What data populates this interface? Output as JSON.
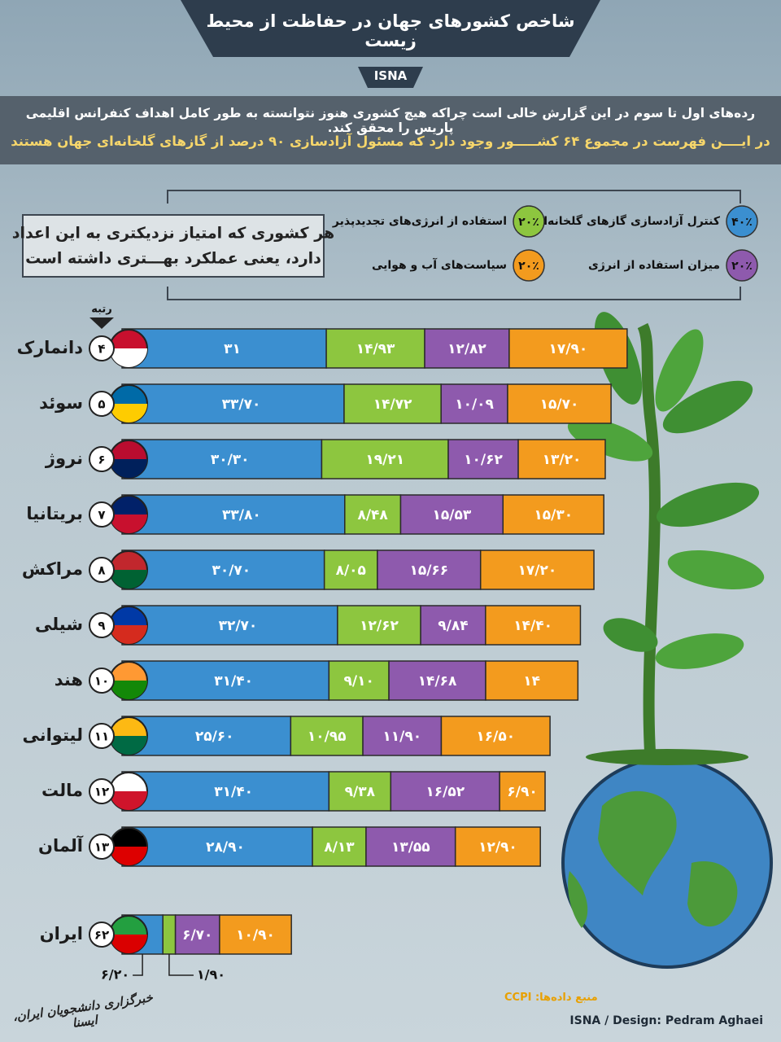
{
  "chart_data": {
    "type": "bar",
    "orientation": "horizontal",
    "stacked": true,
    "title": "شاخص کشورهای جهان در حفاظت از محیط زیست",
    "brand": "ISNA",
    "intro": [
      "رده‌های اول تا سوم در این گزارش خالی است چراکه هیچ کشوری هنوز نتوانسته به طور کامل اهداف کنفرانس اقلیمی پاریس را محقق کند.",
      "در ایــــن فهرست در مجموع ۶۴ کشـــــور وجود دارد که مسئول آزادسازی ۹۰ درصد از گازهای گلخانه‌ای جهان هستند"
    ],
    "note": [
      "هر کشوری که امتیاز نزدیکتری به این اعداد",
      "دارد، یعنی عملکرد بهـــتری داشته است"
    ],
    "rank_label": "رتبه",
    "categories": [
      "دانمارک",
      "سوئد",
      "نروژ",
      "بریتانیا",
      "مراکش",
      "شیلی",
      "هند",
      "لیتوانی",
      "مالت",
      "آلمان",
      "ایران"
    ],
    "ranks": [
      "۴",
      "۵",
      "۶",
      "۷",
      "۸",
      "۹",
      "۱۰",
      "۱۱",
      "۱۲",
      "۱۳",
      "۶۲"
    ],
    "series": [
      {
        "name": "کنترل آزادسازی گازهای گلخانه‌ای",
        "weight": 40,
        "weight_label": "۴۰٪",
        "color": "#3b8fd0",
        "values": [
          31,
          33.7,
          30.3,
          33.8,
          30.7,
          32.7,
          31.4,
          25.6,
          31.4,
          28.9,
          6.2
        ],
        "value_labels": [
          "۳۱",
          "۳۳/۷۰",
          "۳۰/۳۰",
          "۳۳/۸۰",
          "۳۰/۷۰",
          "۳۲/۷۰",
          "۳۱/۴۰",
          "۲۵/۶۰",
          "۳۱/۴۰",
          "۲۸/۹۰",
          "۶/۲۰"
        ]
      },
      {
        "name": "استفاده از انرژی‌های تجدیدپذیر",
        "weight": 20,
        "weight_label": "۲۰٪",
        "color": "#8dc63f",
        "values": [
          14.93,
          14.72,
          19.21,
          8.48,
          8.05,
          12.62,
          9.1,
          10.95,
          9.38,
          8.13,
          1.9
        ],
        "value_labels": [
          "۱۴/۹۳",
          "۱۴/۷۲",
          "۱۹/۲۱",
          "۸/۴۸",
          "۸/۰۵",
          "۱۲/۶۲",
          "۹/۱۰",
          "۱۰/۹۵",
          "۹/۳۸",
          "۸/۱۳",
          "۱/۹۰"
        ]
      },
      {
        "name": "میزان استفاده از انرژی",
        "weight": 20,
        "weight_label": "۲۰٪",
        "color": "#8e5aad",
        "values": [
          12.82,
          10.09,
          10.62,
          15.53,
          15.66,
          9.84,
          14.68,
          11.9,
          16.52,
          13.55,
          6.7
        ],
        "value_labels": [
          "۱۲/۸۲",
          "۱۰/۰۹",
          "۱۰/۶۲",
          "۱۵/۵۳",
          "۱۵/۶۶",
          "۹/۸۴",
          "۱۴/۶۸",
          "۱۱/۹۰",
          "۱۶/۵۲",
          "۱۳/۵۵",
          "۶/۷۰"
        ]
      },
      {
        "name": "سیاست‌های آب و هوایی",
        "weight": 20,
        "weight_label": "۲۰٪",
        "color": "#f39b1e",
        "values": [
          17.9,
          15.7,
          13.2,
          15.3,
          17.2,
          14.4,
          14,
          16.5,
          6.9,
          12.9,
          10.9
        ],
        "value_labels": [
          "۱۷/۹۰",
          "۱۵/۷۰",
          "۱۳/۲۰",
          "۱۵/۳۰",
          "۱۷/۲۰",
          "۱۴/۴۰",
          "۱۴",
          "۱۶/۵۰",
          "۶/۹۰",
          "۱۲/۹۰",
          "۱۰/۹۰"
        ]
      }
    ],
    "source": "منبع داده‌ها: CCPI",
    "credit": "ISNA / Design: Pedram Aghaei",
    "logo": "خبرگزاری دانشجویان ایران، ایسنا"
  }
}
